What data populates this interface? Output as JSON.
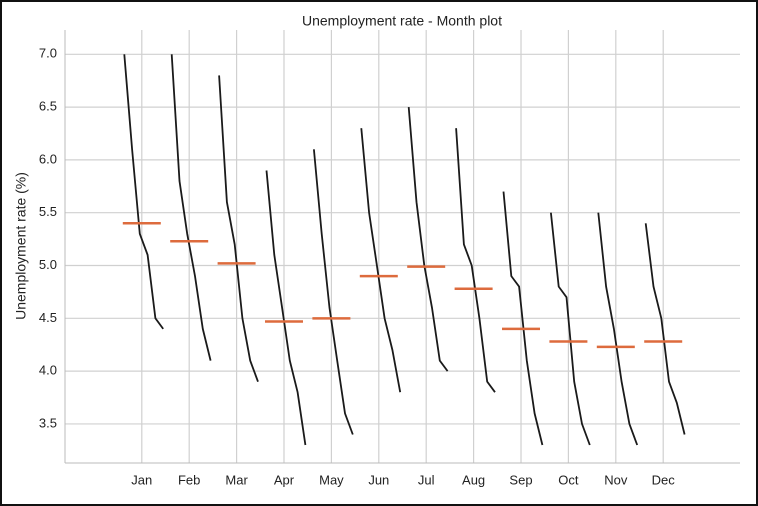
{
  "chart_data": {
    "type": "month_plot",
    "title": "Unemployment rate - Month plot",
    "y_label": "Unemployment rate (%)",
    "categories": [
      "Jan",
      "Feb",
      "Mar",
      "Apr",
      "May",
      "Jun",
      "Jul",
      "Aug",
      "Sep",
      "Oct",
      "Nov",
      "Dec"
    ],
    "values": [
      [
        7.0,
        6.1,
        5.3,
        5.1,
        4.5,
        4.4
      ],
      [
        7.0,
        5.8,
        5.3,
        4.9,
        4.4,
        4.1
      ],
      [
        6.8,
        5.6,
        5.2,
        4.5,
        4.1,
        3.9
      ],
      [
        5.9,
        5.1,
        4.6,
        4.1,
        3.8,
        3.3
      ],
      [
        6.1,
        5.3,
        4.6,
        4.1,
        3.6,
        3.4
      ],
      [
        6.3,
        5.5,
        5.0,
        4.5,
        4.2,
        3.8
      ],
      [
        6.5,
        5.6,
        5.0,
        4.6,
        4.1,
        4.0
      ],
      [
        6.3,
        5.2,
        5.0,
        4.5,
        3.9,
        3.8
      ],
      [
        5.7,
        4.9,
        4.8,
        4.1,
        3.6,
        3.3
      ],
      [
        5.5,
        4.8,
        4.7,
        3.9,
        3.5,
        3.3
      ],
      [
        5.5,
        4.8,
        4.4,
        3.9,
        3.5,
        3.3
      ],
      [
        5.4,
        4.8,
        4.5,
        3.9,
        3.7,
        3.4
      ]
    ],
    "mean_values": [
      5.4,
      5.23,
      5.02,
      4.47,
      4.5,
      4.9,
      4.99,
      4.78,
      4.4,
      4.28,
      4.23,
      4.28
    ],
    "color": "#1a1a1a",
    "mean_color": "#dd6b3d",
    "ylim": [
      3.13,
      7.23
    ],
    "yticks": [
      {
        "value": 3.5,
        "label": "3.5"
      },
      {
        "value": 4,
        "label": "4.0"
      },
      {
        "value": 4.5,
        "label": "4.5"
      },
      {
        "value": 5,
        "label": "5.0"
      },
      {
        "value": 5.5,
        "label": "5.5"
      },
      {
        "value": 6,
        "label": "6.0"
      },
      {
        "value": 6.5,
        "label": "6.5"
      },
      {
        "value": 7,
        "label": "7.0"
      }
    ],
    "grid": true
  }
}
